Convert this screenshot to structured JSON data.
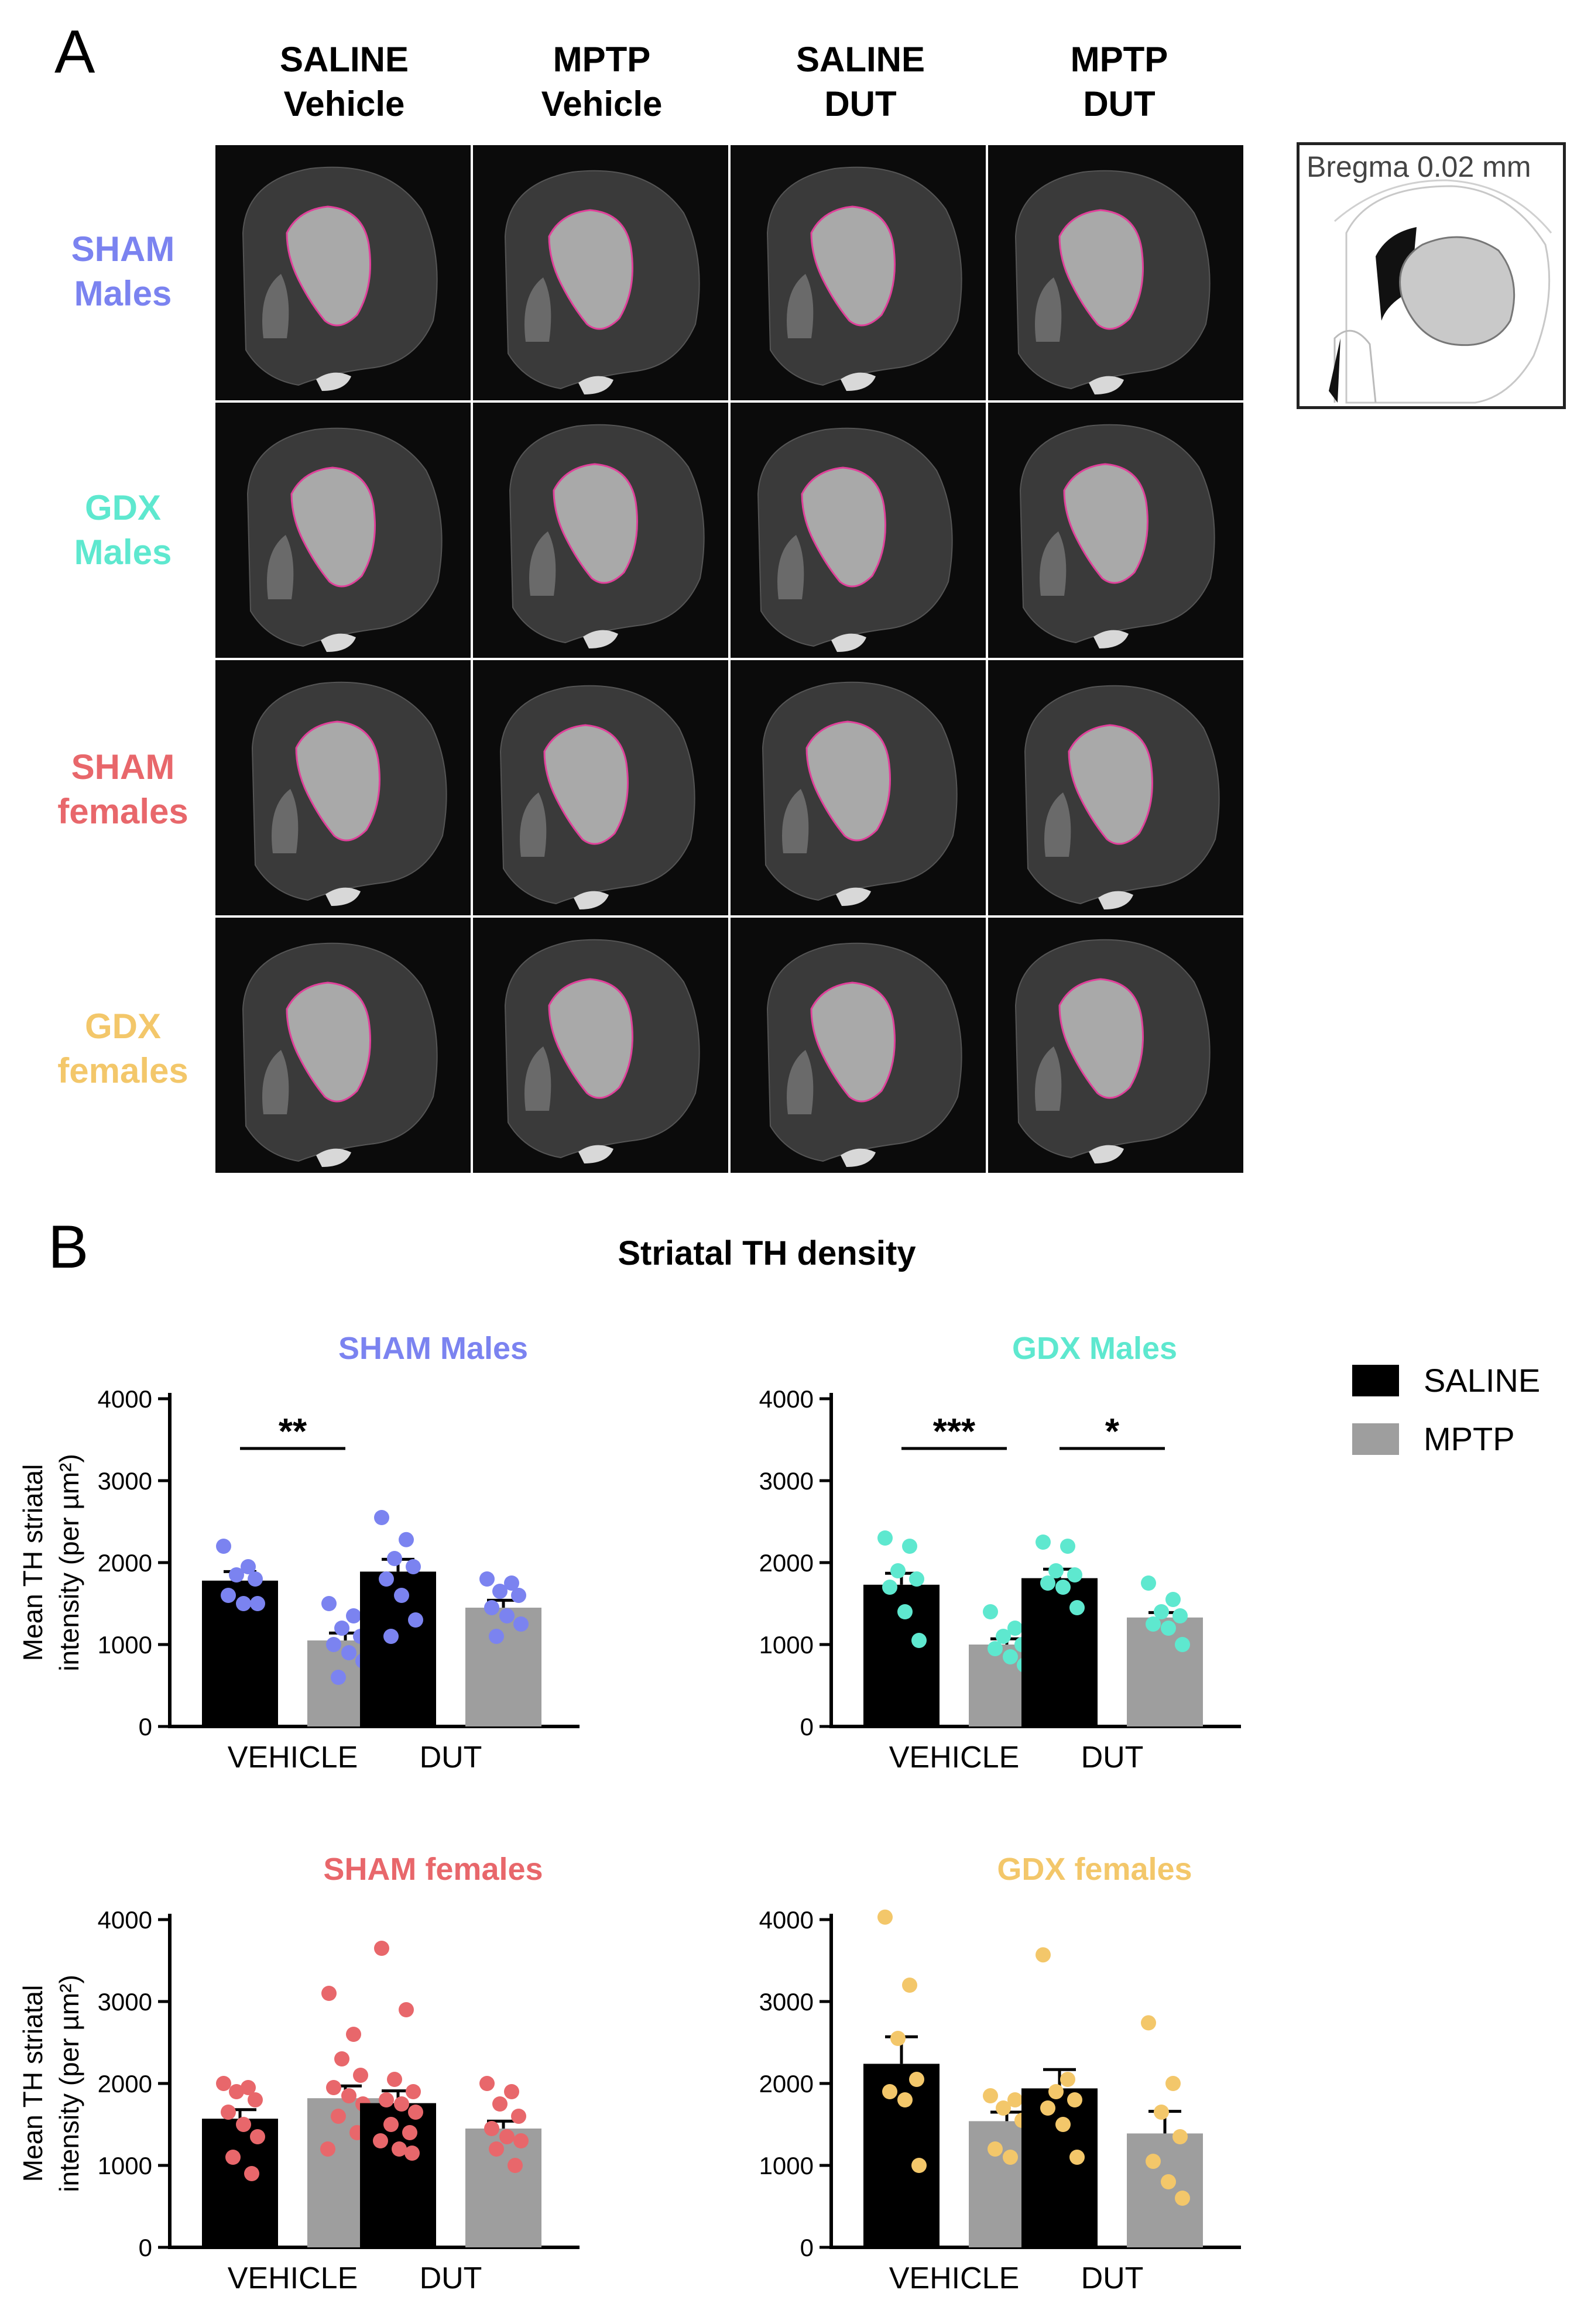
{
  "panel_a": {
    "label": "A",
    "columns": [
      {
        "line1": "SALINE",
        "line2": "Vehicle"
      },
      {
        "line1": "MPTP",
        "line2": "Vehicle"
      },
      {
        "line1": "SALINE",
        "line2": "DUT"
      },
      {
        "line1": "MPTP",
        "line2": "DUT"
      }
    ],
    "rows": [
      {
        "line1": "SHAM",
        "line2": "Males",
        "color": "#7b83f0"
      },
      {
        "line1": "GDX",
        "line2": "Males",
        "color": "#5ee8cf"
      },
      {
        "line1": "SHAM",
        "line2": "females",
        "color": "#e8676b"
      },
      {
        "line1": "GDX",
        "line2": "females",
        "color": "#f3c76a"
      }
    ],
    "bregma_label": "Bregma 0.02 mm",
    "outline_color": "#e0409a"
  },
  "panel_b": {
    "label": "B",
    "title": "Striatal TH density",
    "legend": [
      {
        "label": "SALINE",
        "color": "#000000"
      },
      {
        "label": "MPTP",
        "color": "#9e9e9e"
      }
    ]
  },
  "chart_data": [
    {
      "type": "bar",
      "title": "SHAM Males",
      "title_color": "#7b83f0",
      "point_color": "#7b83f0",
      "ylabel_line1": "Mean TH striatal",
      "ylabel_line2": "intensity (per  µm²)",
      "ylim": [
        0,
        4000
      ],
      "yticks": [
        0,
        1000,
        2000,
        3000,
        4000
      ],
      "categories": [
        "VEHICLE",
        "DUT"
      ],
      "series": [
        {
          "name": "SALINE",
          "values": [
            1780,
            1890
          ],
          "sem": [
            110,
            150
          ],
          "points": [
            [
              2200,
              1950,
              1850,
              1800,
              1600,
              1500,
              1500
            ],
            [
              2550,
              2280,
              2050,
              1950,
              1800,
              1600,
              1300,
              1100
            ]
          ]
        },
        {
          "name": "MPTP",
          "values": [
            1050,
            1450
          ],
          "sem": [
            90,
            90
          ],
          "points": [
            [
              1500,
              1350,
              1200,
              1100,
              1000,
              900,
              800,
              600
            ],
            [
              1800,
              1750,
              1650,
              1600,
              1450,
              1350,
              1250,
              1100
            ]
          ]
        }
      ],
      "significance": [
        {
          "category": "VEHICLE",
          "label": "**"
        }
      ]
    },
    {
      "type": "bar",
      "title": "GDX Males",
      "title_color": "#5ee8cf",
      "point_color": "#5ee8cf",
      "ylabel_line1": "",
      "ylabel_line2": "",
      "ylim": [
        0,
        4000
      ],
      "yticks": [
        0,
        1000,
        2000,
        3000,
        4000
      ],
      "categories": [
        "VEHICLE",
        "DUT"
      ],
      "series": [
        {
          "name": "SALINE",
          "values": [
            1730,
            1810
          ],
          "sem": [
            140,
            110
          ],
          "points": [
            [
              2300,
              2200,
              1900,
              1800,
              1700,
              1400,
              1050
            ],
            [
              2250,
              2200,
              1900,
              1850,
              1750,
              1700,
              1450
            ]
          ]
        },
        {
          "name": "MPTP",
          "values": [
            1000,
            1330
          ],
          "sem": [
            70,
            60
          ],
          "points": [
            [
              1400,
              1200,
              1100,
              1000,
              950,
              850,
              750
            ],
            [
              1750,
              1550,
              1400,
              1350,
              1250,
              1200,
              1000
            ]
          ]
        }
      ],
      "significance": [
        {
          "category": "VEHICLE",
          "label": "***"
        },
        {
          "category": "DUT",
          "label": "*"
        }
      ]
    },
    {
      "type": "bar",
      "title": "SHAM females",
      "title_color": "#e8676b",
      "point_color": "#e8676b",
      "ylabel_line1": "Mean TH striatal",
      "ylabel_line2": "intensity (per  µm²)",
      "ylim": [
        0,
        4000
      ],
      "yticks": [
        0,
        1000,
        2000,
        3000,
        4000
      ],
      "categories": [
        "VEHICLE",
        "DUT"
      ],
      "series": [
        {
          "name": "SALINE",
          "values": [
            1570,
            1760
          ],
          "sem": [
            110,
            150
          ],
          "points": [
            [
              2000,
              1950,
              1900,
              1800,
              1650,
              1500,
              1350,
              1100,
              900
            ],
            [
              3650,
              2900,
              2050,
              1900,
              1800,
              1750,
              1650,
              1500,
              1400,
              1300,
              1200,
              1150
            ]
          ]
        },
        {
          "name": "MPTP",
          "values": [
            1820,
            1450
          ],
          "sem": [
            150,
            90
          ],
          "points": [
            [
              3100,
              2600,
              2300,
              2100,
              1950,
              1850,
              1750,
              1600,
              1400,
              1200
            ],
            [
              2000,
              1900,
              1750,
              1600,
              1450,
              1350,
              1300,
              1200,
              1000
            ]
          ]
        }
      ],
      "significance": []
    },
    {
      "type": "bar",
      "title": "GDX females",
      "title_color": "#f3c76a",
      "point_color": "#f3c76a",
      "ylabel_line1": "",
      "ylabel_line2": "",
      "ylim": [
        0,
        4000
      ],
      "yticks": [
        0,
        1000,
        2000,
        3000,
        4000
      ],
      "categories": [
        "VEHICLE",
        "DUT"
      ],
      "series": [
        {
          "name": "SALINE",
          "values": [
            2240,
            1940
          ],
          "sem": [
            330,
            230
          ],
          "points": [
            [
              4030,
              3200,
              2550,
              2050,
              1900,
              1800,
              1000
            ],
            [
              3570,
              2050,
              1900,
              1800,
              1700,
              1500,
              1100
            ]
          ]
        },
        {
          "name": "MPTP",
          "values": [
            1540,
            1390
          ],
          "sem": [
            110,
            270
          ],
          "points": [
            [
              1850,
              1800,
              1700,
              1550,
              1200,
              1100
            ],
            [
              2740,
              2000,
              1650,
              1350,
              1050,
              800,
              600
            ]
          ]
        }
      ],
      "significance": []
    }
  ]
}
